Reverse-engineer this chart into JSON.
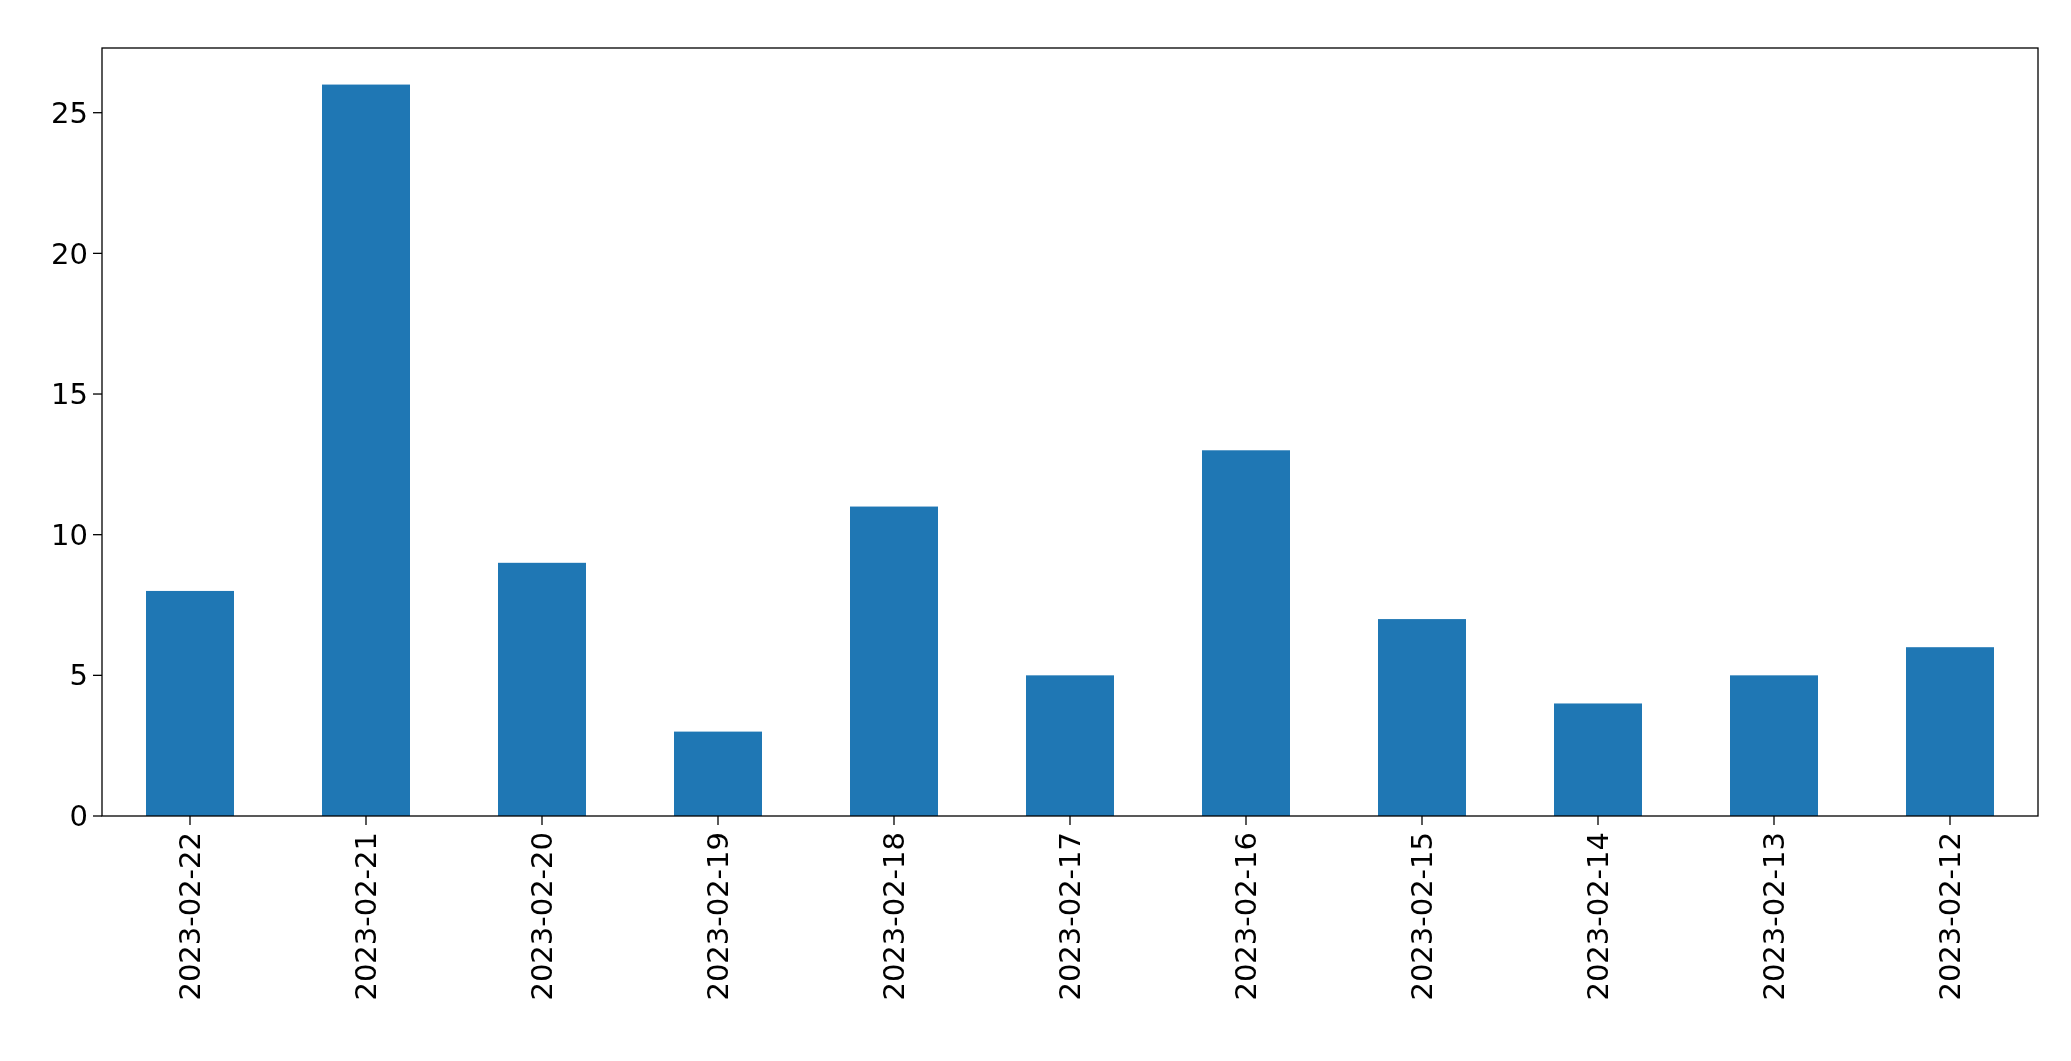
{
  "chart_data": {
    "type": "bar",
    "categories": [
      "2023-02-22",
      "2023-02-21",
      "2023-02-20",
      "2023-02-19",
      "2023-02-18",
      "2023-02-17",
      "2023-02-16",
      "2023-02-15",
      "2023-02-14",
      "2023-02-13",
      "2023-02-12"
    ],
    "values": [
      8,
      26,
      9,
      3,
      11,
      5,
      13,
      7,
      4,
      5,
      6
    ],
    "color": "#1f77b4",
    "ylim": [
      0,
      27.3
    ],
    "yticks": [
      0,
      5,
      10,
      15,
      20,
      25
    ]
  }
}
